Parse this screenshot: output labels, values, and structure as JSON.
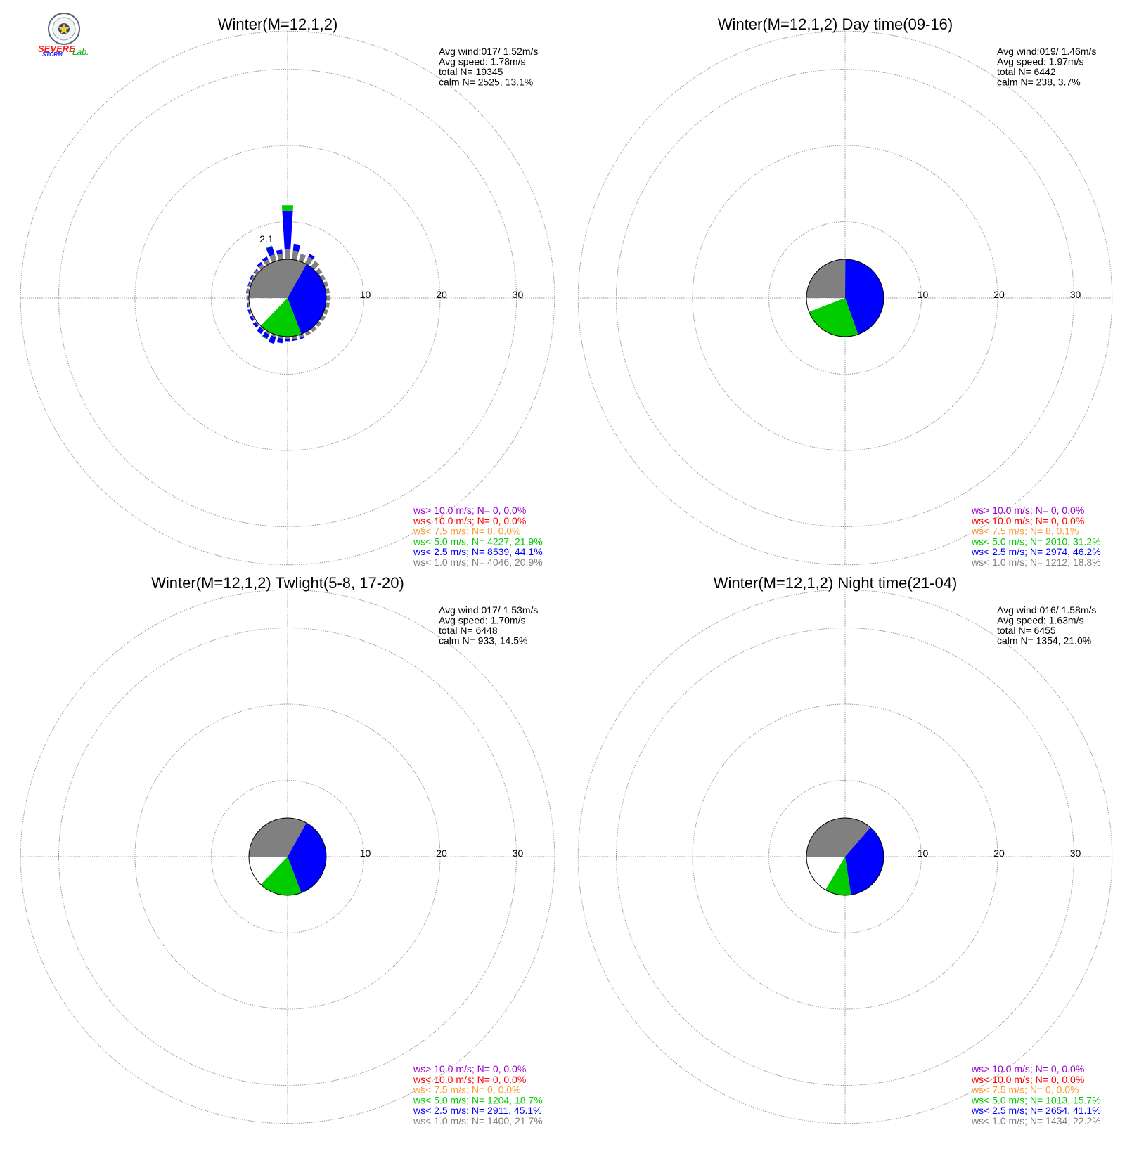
{
  "logo": {
    "name": "SEVERE STORM Lab.",
    "line1": "SEVERE",
    "line2": "STORM",
    "line3": "Lab."
  },
  "colors": {
    "gray": "#808080",
    "blue": "#0000ff",
    "green": "#00cc00",
    "orange": "#ff9933",
    "red": "#ff0000",
    "purple": "#9900cc",
    "calm_gray": "#808080",
    "calm_blue": "#0000ff",
    "calm_green": "#00cc00"
  },
  "chart_data": [
    {
      "type": "polar-bar",
      "title": "Winter(M=12,1,2)",
      "rlim": [
        0,
        35
      ],
      "ring_labels": [
        "10",
        "20",
        "30"
      ],
      "stats": [
        "Avg wind:017/ 1.52m/s",
        "Avg speed: 1.78m/s",
        "total N=       19345",
        "calm N=   2525,  13.1%"
      ],
      "legend": [
        {
          "text": "ws> 10.0 m/s; N=     0,  0.0%",
          "color": "#9900cc"
        },
        {
          "text": "ws< 10.0 m/s; N=     0,  0.0%",
          "color": "#ff0000"
        },
        {
          "text": "ws<  7.5 m/s; N=     8,  0.0%",
          "color": "#ff9933"
        },
        {
          "text": "ws<  5.0 m/s; N=  4227, 21.9%",
          "color": "#00cc00"
        },
        {
          "text": "ws<  2.5 m/s; N=  8539, 44.1%",
          "color": "#0000ff"
        },
        {
          "text": "ws<  1.0 m/s; N=  4046, 20.9%",
          "color": "#808080"
        }
      ],
      "calm_slices": [
        {
          "frac": 0.331,
          "color": "#808080"
        },
        {
          "frac": 0.3614,
          "color": "#0000ff"
        },
        {
          "frac": 0.1795,
          "color": "#00cc00"
        }
      ],
      "sectors": [
        {
          "deg": 0,
          "label": "",
          "gray": 1.4,
          "blue": 6.4,
          "green": 7.1,
          "total": 7.1
        },
        {
          "deg": 10,
          "label": "",
          "gray": 1.2,
          "blue": 2.1,
          "green": 2.1,
          "total": 2.1
        },
        {
          "deg": 20,
          "label": "",
          "gray": 1.0,
          "blue": 1.0,
          "green": 1.0,
          "total": 1.0
        },
        {
          "deg": 30,
          "label": "",
          "gray": 1.0,
          "blue": 1.4,
          "green": 1.4,
          "total": 1.4
        },
        {
          "deg": 40,
          "label": "",
          "gray": 1.0,
          "blue": 1.0,
          "green": 1.0,
          "total": 1.0
        },
        {
          "deg": 50,
          "label": "",
          "gray": 0.6,
          "blue": 0.6,
          "green": 0.6,
          "total": 0.6
        },
        {
          "deg": 60,
          "label": "",
          "gray": 0.5,
          "blue": 0.5,
          "green": 0.5,
          "total": 0.5
        },
        {
          "deg": 70,
          "label": "",
          "gray": 0.5,
          "blue": 0.5,
          "green": 0.5,
          "total": 0.5
        },
        {
          "deg": 80,
          "label": "",
          "gray": 0.5,
          "blue": 0.5,
          "green": 0.5,
          "total": 0.5
        },
        {
          "deg": 90,
          "label": "",
          "gray": 0.5,
          "blue": 0.5,
          "green": 0.5,
          "total": 0.5
        },
        {
          "deg": 100,
          "label": "",
          "gray": 0.5,
          "blue": 0.5,
          "green": 0.5,
          "total": 0.5
        },
        {
          "deg": 110,
          "label": "",
          "gray": 0.5,
          "blue": 0.5,
          "green": 0.5,
          "total": 0.5
        },
        {
          "deg": 120,
          "label": "",
          "gray": 0.5,
          "blue": 0.5,
          "green": 0.5,
          "total": 0.5
        },
        {
          "deg": 130,
          "label": "",
          "gray": 0.5,
          "blue": 0.5,
          "green": 0.5,
          "total": 0.5
        },
        {
          "deg": 140,
          "label": "",
          "gray": 0.5,
          "blue": 0.5,
          "green": 0.5,
          "total": 0.5
        },
        {
          "deg": 150,
          "label": "",
          "gray": 0.5,
          "blue": 0.5,
          "green": 0.5,
          "total": 0.5
        },
        {
          "deg": 160,
          "label": "",
          "gray": 0.4,
          "blue": 0.6,
          "green": 0.6,
          "total": 0.6
        },
        {
          "deg": 170,
          "label": "",
          "gray": 0.4,
          "blue": 0.6,
          "green": 0.6,
          "total": 0.6
        },
        {
          "deg": 180,
          "label": "",
          "gray": 0.3,
          "blue": 0.6,
          "green": 0.6,
          "total": 0.6
        },
        {
          "deg": 190,
          "label": "",
          "gray": 0.3,
          "blue": 0.9,
          "green": 0.9,
          "total": 0.9
        },
        {
          "deg": 200,
          "label": "",
          "gray": 0.3,
          "blue": 1.2,
          "green": 1.2,
          "total": 1.2
        },
        {
          "deg": 210,
          "label": "",
          "gray": 0.3,
          "blue": 0.9,
          "green": 1.0,
          "total": 1.0
        },
        {
          "deg": 220,
          "label": "",
          "gray": 0.2,
          "blue": 0.8,
          "green": 0.8,
          "total": 0.8
        },
        {
          "deg": 230,
          "label": "",
          "gray": 0.2,
          "blue": 0.6,
          "green": 0.6,
          "total": 0.6
        },
        {
          "deg": 240,
          "label": "",
          "gray": 0.2,
          "blue": 0.5,
          "green": 0.5,
          "total": 0.5
        },
        {
          "deg": 250,
          "label": "",
          "gray": 0.2,
          "blue": 0.4,
          "green": 0.4,
          "total": 0.4
        },
        {
          "deg": 260,
          "label": "",
          "gray": 0.2,
          "blue": 0.3,
          "green": 0.3,
          "total": 0.3
        },
        {
          "deg": 270,
          "label": "",
          "gray": 0.2,
          "blue": 0.3,
          "green": 0.3,
          "total": 0.3
        },
        {
          "deg": 280,
          "label": "",
          "gray": 0.3,
          "blue": 0.4,
          "green": 0.4,
          "total": 0.4
        },
        {
          "deg": 290,
          "label": "",
          "gray": 0.3,
          "blue": 0.4,
          "green": 0.4,
          "total": 0.4
        },
        {
          "deg": 300,
          "label": "",
          "gray": 0.3,
          "blue": 0.5,
          "green": 0.5,
          "total": 0.5
        },
        {
          "deg": 310,
          "label": "",
          "gray": 0.4,
          "blue": 0.5,
          "green": 0.5,
          "total": 0.5
        },
        {
          "deg": 320,
          "label": "",
          "gray": 0.5,
          "blue": 0.8,
          "green": 0.8,
          "total": 0.8
        },
        {
          "deg": 330,
          "label": "",
          "gray": 0.6,
          "blue": 1.0,
          "green": 1.0,
          "total": 1.0
        },
        {
          "deg": 340,
          "label": "2.1",
          "gray": 0.9,
          "blue": 2.0,
          "green": 2.1,
          "total": 2.1
        },
        {
          "deg": 350,
          "label": "",
          "gray": 0.8,
          "blue": 1.3,
          "green": 1.3,
          "total": 1.3
        }
      ]
    },
    {
      "type": "polar-bar",
      "title": "Winter(M=12,1,2) Day time(09-16)",
      "rlim": [
        0,
        35
      ],
      "ring_labels": [
        "10",
        "20",
        "30"
      ],
      "stats": [
        "Avg wind:019/ 1.46m/s",
        "Avg speed: 1.97m/s",
        "total N=         6442",
        "calm N=    238,   3.7%"
      ],
      "legend": [
        {
          "text": "ws> 10.0 m/s; N=     0,  0.0%",
          "color": "#9900cc"
        },
        {
          "text": "ws< 10.0 m/s; N=     0,  0.0%",
          "color": "#ff0000"
        },
        {
          "text": "ws<  7.5 m/s; N=     8,  0.1%",
          "color": "#ff9933"
        },
        {
          "text": "ws<  5.0 m/s; N=  2010, 31.2%",
          "color": "#00cc00"
        },
        {
          "text": "ws<  2.5 m/s; N=  2974, 46.2%",
          "color": "#0000ff"
        },
        {
          "text": "ws<  1.0 m/s; N=  1212, 18.8%",
          "color": "#808080"
        }
      ],
      "calm_slices": [
        {
          "frac": 0.251,
          "color": "#808080"
        },
        {
          "frac": 0.4445,
          "color": "#0000ff"
        },
        {
          "frac": 0.2465,
          "color": "#00cc00"
        }
      ],
      "sectors": []
    },
    {
      "type": "polar-bar",
      "title": "Winter(M=12,1,2) Twlight(5-8, 17-20)",
      "rlim": [
        0,
        35
      ],
      "ring_labels": [
        "10",
        "20",
        "30"
      ],
      "stats": [
        "Avg wind:017/ 1.53m/s",
        "Avg speed: 1.70m/s",
        "total N=         6448",
        "calm N=    933,  14.5%"
      ],
      "legend": [
        {
          "text": "ws> 10.0 m/s; N=     0,  0.0%",
          "color": "#9900cc"
        },
        {
          "text": "ws< 10.0 m/s; N=     0,  0.0%",
          "color": "#ff0000"
        },
        {
          "text": "ws<  7.5 m/s; N=     0,  0.0%",
          "color": "#ff9933"
        },
        {
          "text": "ws<  5.0 m/s; N=  1204, 18.7%",
          "color": "#00cc00"
        },
        {
          "text": "ws<  2.5 m/s; N=  2911, 45.1%",
          "color": "#0000ff"
        },
        {
          "text": "ws<  1.0 m/s; N=  1400, 21.7%",
          "color": "#808080"
        }
      ],
      "calm_slices": [
        {
          "frac": 0.331,
          "color": "#808080"
        },
        {
          "frac": 0.3614,
          "color": "#0000ff"
        },
        {
          "frac": 0.1795,
          "color": "#00cc00"
        }
      ],
      "sectors": []
    },
    {
      "type": "polar-bar",
      "title": "Winter(M=12,1,2) Night time(21-04)",
      "rlim": [
        0,
        35
      ],
      "ring_labels": [
        "10",
        "20",
        "30"
      ],
      "stats": [
        "Avg wind:016/ 1.58m/s",
        "Avg speed: 1.63m/s",
        "total N=         6455",
        "calm N=   1354,  21.0%"
      ],
      "legend": [
        {
          "text": "ws> 10.0 m/s; N=     0,  0.0%",
          "color": "#9900cc"
        },
        {
          "text": "ws< 10.0 m/s; N=     0,  0.0%",
          "color": "#ff0000"
        },
        {
          "text": "ws<  7.5 m/s; N=     0,  0.0%",
          "color": "#ff9933"
        },
        {
          "text": "ws<  5.0 m/s; N=  1013, 15.7%",
          "color": "#00cc00"
        },
        {
          "text": "ws<  2.5 m/s; N=  2654, 41.1%",
          "color": "#0000ff"
        },
        {
          "text": "ws<  1.0 m/s; N=  1434, 22.2%",
          "color": "#808080"
        }
      ],
      "calm_slices": [
        {
          "frac": 0.364,
          "color": "#808080"
        },
        {
          "frac": 0.3615,
          "color": "#0000ff"
        },
        {
          "frac": 0.11,
          "color": "#00cc00"
        }
      ],
      "sectors": []
    }
  ]
}
